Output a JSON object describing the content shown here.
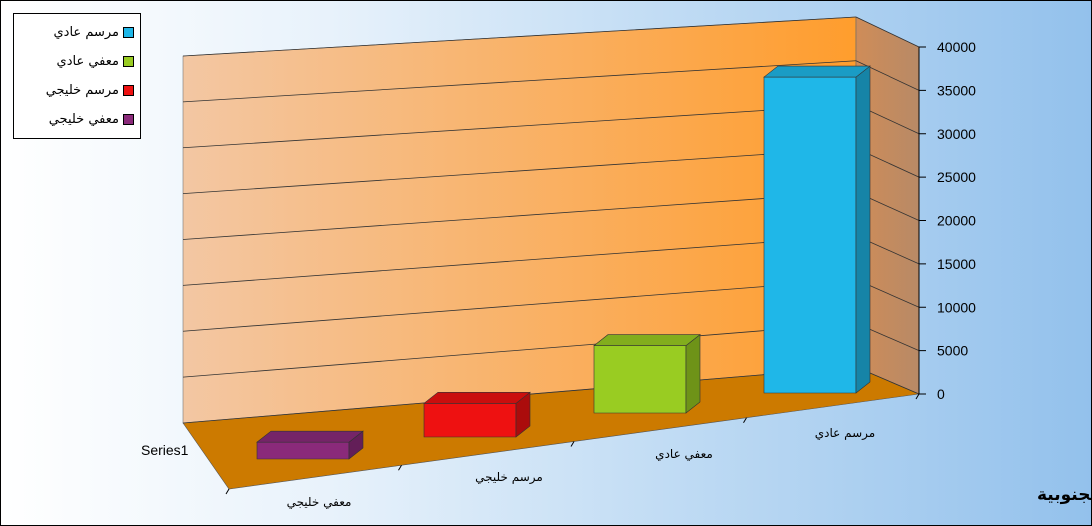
{
  "chart_data": {
    "type": "bar",
    "title": "الموانئ الجنوبية",
    "series_label": "Series1",
    "categories": [
      "مرسم عادي",
      "معفي عادي",
      "مرسم خليجي",
      "معفي خليجي"
    ],
    "values": [
      37500,
      8000,
      4000,
      2000
    ],
    "colors": [
      "#1fb7e8",
      "#99cc22",
      "#ee1111",
      "#8a2a7a"
    ],
    "ylim": [
      0,
      40000
    ],
    "yticks": [
      "40000",
      "35000",
      "30000",
      "25000",
      "20000",
      "15000",
      "10000",
      "5000",
      "0"
    ],
    "grid": true,
    "legend_position": "top-left",
    "legend": [
      "مرسم عادي",
      "معفي عادي",
      "مرسم خليجي",
      "معفي خليجي"
    ]
  }
}
